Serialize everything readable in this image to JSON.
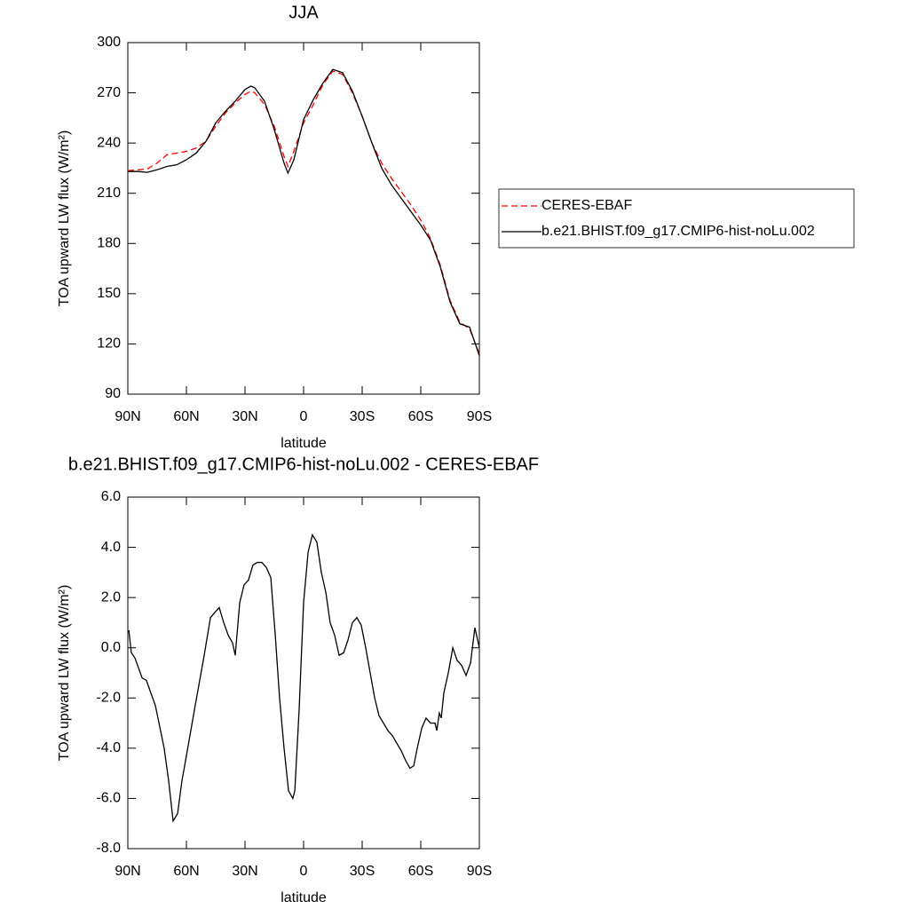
{
  "chart_data": [
    {
      "type": "line",
      "title": "JJA",
      "x_label": "latitude",
      "y_label": "TOA upward LW flux (W/m²)",
      "xlim": [
        90,
        -90
      ],
      "xticks": [
        {
          "value": 90,
          "label": "90N"
        },
        {
          "value": 60,
          "label": "60N"
        },
        {
          "value": 30,
          "label": "30N"
        },
        0,
        {
          "value": -30,
          "label": "30S"
        },
        {
          "value": -60,
          "label": "60S"
        },
        {
          "value": -90,
          "label": "90S"
        }
      ],
      "ylim": [
        90,
        300
      ],
      "yticks": [
        90,
        120,
        150,
        180,
        210,
        240,
        270,
        300
      ],
      "legend": "right",
      "x": [
        90,
        85,
        80,
        75,
        70,
        65,
        60,
        55,
        50,
        45,
        40,
        35,
        30,
        27,
        25,
        20,
        15,
        10,
        8,
        5,
        0,
        -5,
        -10,
        -15,
        -20,
        -25,
        -30,
        -35,
        -40,
        -45,
        -50,
        -55,
        -60,
        -65,
        -70,
        -75,
        -80,
        -85,
        -90
      ],
      "series": [
        {
          "name": "CERES-EBAF",
          "color": "#ff0000",
          "line_style": "dashed",
          "values": [
            223.5,
            224,
            224.5,
            228,
            233,
            234,
            235,
            237,
            241,
            250,
            258,
            264,
            269,
            271,
            270,
            263,
            250,
            232,
            226,
            235,
            252,
            263,
            275,
            283,
            281,
            270,
            256,
            240,
            228,
            219,
            211,
            203,
            194,
            183,
            167,
            146,
            133,
            129,
            114
          ]
        },
        {
          "name": "b.e21.BHIST.f09_g17.CMIP6-hist-noLu.002",
          "color": "#000000",
          "line_style": "solid",
          "values": [
            223,
            223,
            222.5,
            224,
            226,
            227,
            230,
            234,
            241,
            252,
            259,
            265,
            272,
            274,
            273,
            265,
            248,
            228,
            222,
            230,
            254,
            266,
            276,
            284,
            282,
            271,
            256,
            240,
            225,
            215,
            207,
            199,
            191,
            182,
            166,
            145,
            132,
            130,
            113
          ]
        }
      ]
    },
    {
      "type": "line",
      "title": "b.e21.BHIST.f09_g17.CMIP6-hist-noLu.002 - CERES-EBAF",
      "x_label": "latitude",
      "y_label": "TOA upward LW flux (W/m²)",
      "xlim": [
        90,
        -90
      ],
      "xticks": [
        {
          "value": 90,
          "label": "90N"
        },
        {
          "value": 60,
          "label": "60N"
        },
        {
          "value": 30,
          "label": "30N"
        },
        0,
        {
          "value": -30,
          "label": "30S"
        },
        {
          "value": -60,
          "label": "60S"
        },
        {
          "value": -90,
          "label": "90S"
        }
      ],
      "ylim": [
        -8,
        6
      ],
      "yticks": [
        {
          "value": -8,
          "label": "-8.0"
        },
        {
          "value": -6,
          "label": "-6.0"
        },
        {
          "value": -4,
          "label": "-4.0"
        },
        {
          "value": -2,
          "label": "-2.0"
        },
        {
          "value": 0,
          "label": "0.0"
        },
        {
          "value": 2,
          "label": "2.0"
        },
        {
          "value": 4,
          "label": "4.0"
        },
        {
          "value": 6,
          "label": "6.0"
        }
      ],
      "x": [
        89.5,
        88.2,
        86.4,
        82.7,
        80.5,
        75.9,
        71.4,
        69.1,
        66.8,
        64.5,
        62.3,
        60,
        55.5,
        50.9,
        47.7,
        45.5,
        43.2,
        40.9,
        38.6,
        36.4,
        35,
        32.7,
        30.5,
        28.2,
        25.9,
        23.6,
        21.4,
        19.1,
        16.8,
        14.5,
        12.3,
        10,
        7.7,
        5.5,
        4.5,
        2.3,
        0,
        -2.3,
        -4.5,
        -6.8,
        -9.1,
        -11.4,
        -13.6,
        -15.9,
        -18.2,
        -20.5,
        -22.7,
        -25,
        -27.3,
        -29.5,
        -31.8,
        -34.1,
        -36.4,
        -38.6,
        -40.9,
        -43.2,
        -45.5,
        -47.7,
        -50,
        -52.3,
        -54.5,
        -56.4,
        -58.2,
        -60.5,
        -62.7,
        -65,
        -67.3,
        -68.2,
        -69.5,
        -70.5,
        -71.8,
        -74.1,
        -76.4,
        -78.6,
        -80.9,
        -83.2,
        -85.5,
        -87.7,
        -90
      ],
      "series": [
        {
          "color": "#000000",
          "line_style": "solid",
          "values": [
            0.7,
            -0.2,
            -0.4,
            -1.2,
            -1.3,
            -2.3,
            -4.0,
            -5.3,
            -6.9,
            -6.6,
            -5.3,
            -4.3,
            -2.3,
            -0.3,
            1.2,
            1.4,
            1.6,
            1.0,
            0.5,
            0.2,
            -0.3,
            1.8,
            2.5,
            2.7,
            3.3,
            3.4,
            3.4,
            3.2,
            2.8,
            0.5,
            -2.0,
            -4.0,
            -5.7,
            -6.0,
            -5.7,
            -2.5,
            1.8,
            3.8,
            4.5,
            4.2,
            3.0,
            2.2,
            1.0,
            0.5,
            -0.3,
            -0.2,
            0.3,
            1.0,
            1.2,
            0.9,
            0.0,
            -1.0,
            -2.0,
            -2.7,
            -3.0,
            -3.3,
            -3.5,
            -3.8,
            -4.1,
            -4.5,
            -4.8,
            -4.7,
            -4.0,
            -3.2,
            -2.8,
            -3.0,
            -3.0,
            -3.3,
            -2.6,
            -2.8,
            -1.8,
            -1.0,
            0.0,
            -0.5,
            -0.7,
            -1.1,
            -0.6,
            0.8,
            0.0
          ]
        }
      ]
    }
  ]
}
